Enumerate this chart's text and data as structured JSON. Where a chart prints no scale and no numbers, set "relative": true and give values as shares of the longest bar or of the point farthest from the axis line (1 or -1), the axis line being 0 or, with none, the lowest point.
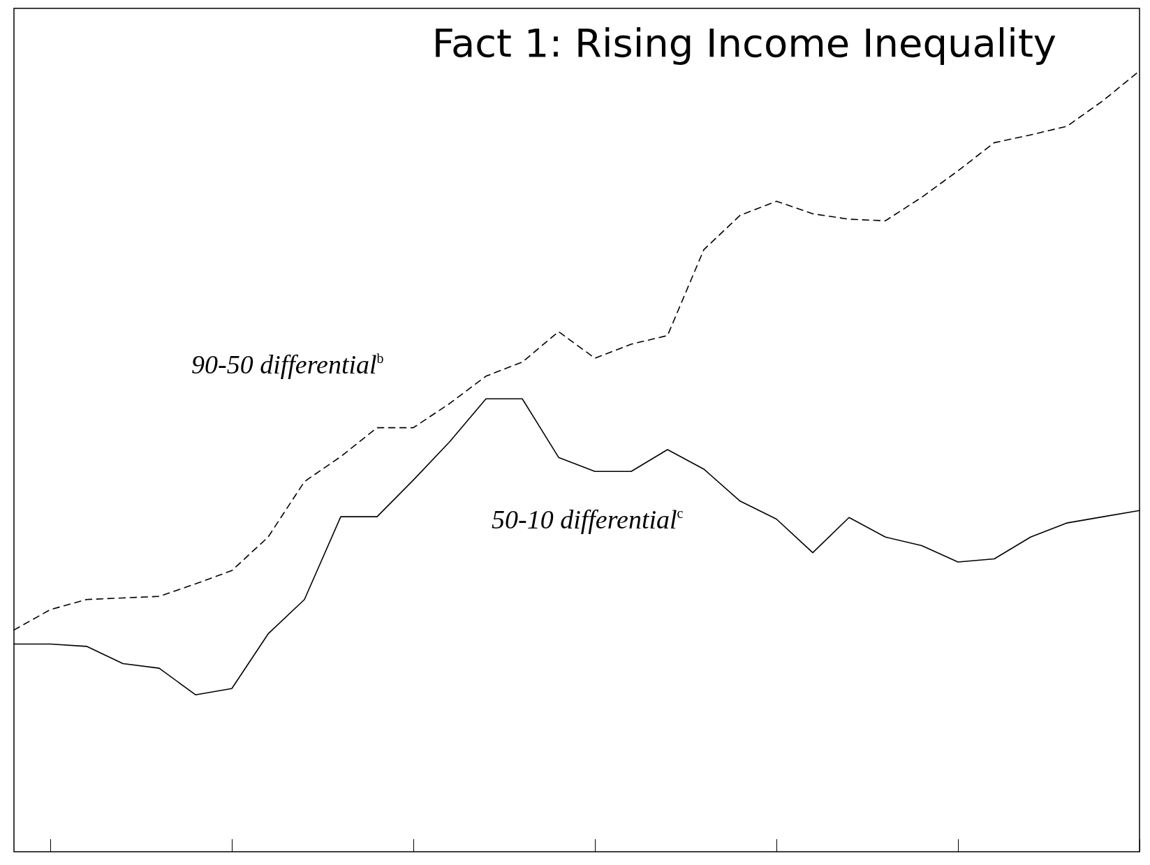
{
  "chart_data": {
    "type": "line",
    "title": "Fact 1: Rising Income Inequality",
    "relative": true,
    "legend": false,
    "grid": false,
    "marker": "none",
    "categories": [
      null,
      null,
      null,
      null,
      null,
      null,
      null,
      null,
      null,
      null,
      null,
      null,
      null,
      null,
      null,
      null,
      null,
      null,
      null,
      null,
      null,
      null,
      null,
      null,
      null,
      null,
      null,
      null,
      null,
      null,
      null,
      null
    ],
    "series": [
      {
        "name": "90-50 differential$^{b}$",
        "color": "#000000",
        "line_style": "dashed",
        "values": [
          0.284,
          0.31,
          0.323,
          0.325,
          0.327,
          0.343,
          0.36,
          0.403,
          0.474,
          0.506,
          0.543,
          0.543,
          0.574,
          0.609,
          0.627,
          0.666,
          0.632,
          0.65,
          0.661,
          0.771,
          0.815,
          0.833,
          0.817,
          0.81,
          0.808,
          0.838,
          0.872,
          0.908,
          0.918,
          0.929,
          0.962,
          1
        ]
      },
      {
        "name": "50-10 differential$^{c}$",
        "color": "#000000",
        "line_style": "solid",
        "values": [
          0.266,
          0.266,
          0.263,
          0.241,
          0.235,
          0.201,
          0.209,
          0.279,
          0.323,
          0.429,
          0.429,
          0.476,
          0.525,
          0.58,
          0.58,
          0.505,
          0.487,
          0.487,
          0.515,
          0.49,
          0.449,
          0.426,
          0.383,
          0.428,
          0.403,
          0.392,
          0.371,
          0.375,
          0.403,
          0.421,
          0.429,
          0.437
        ]
      }
    ]
  }
}
